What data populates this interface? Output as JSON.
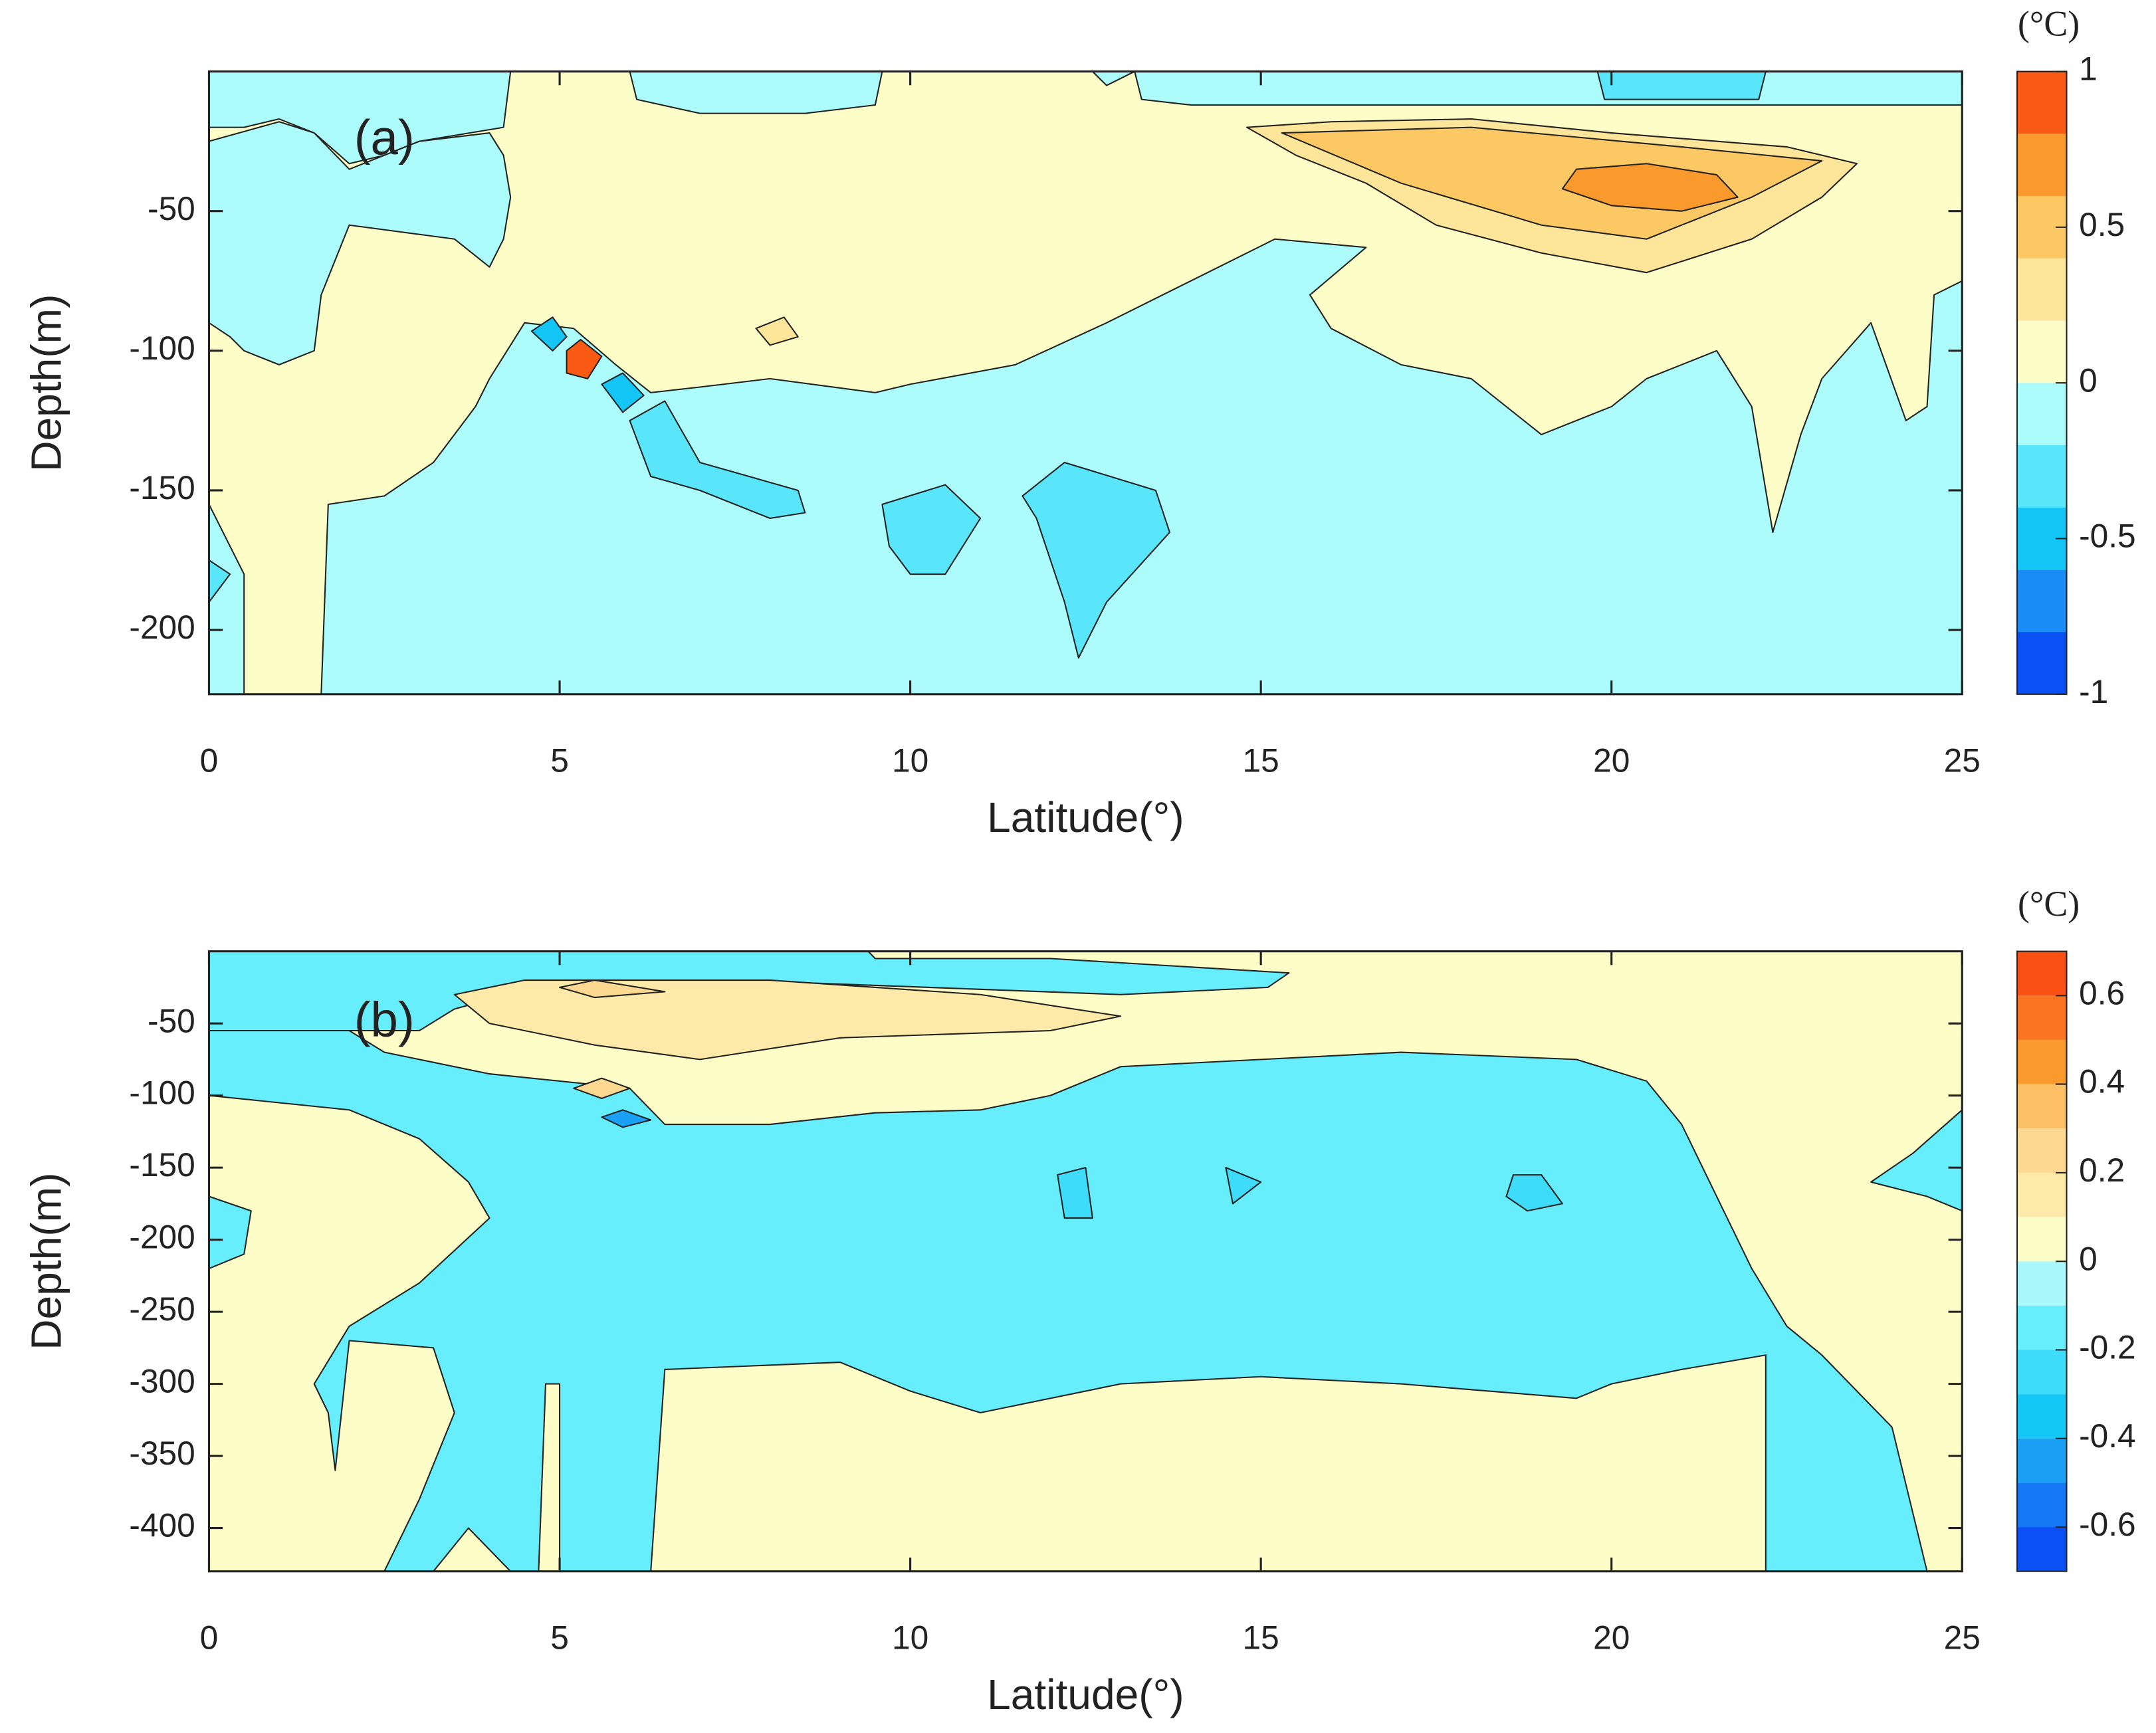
{
  "chart_data": [
    {
      "type": "contour",
      "panel_label": "(a)",
      "xlabel": "Latitude(°)",
      "ylabel": "Depth(m)",
      "xlim": [
        0,
        25
      ],
      "ylim": [
        -223,
        0
      ],
      "xticks": [
        0,
        5,
        10,
        15,
        20,
        25
      ],
      "yticks": [
        -50,
        -100,
        -150,
        -200
      ],
      "colorbar": {
        "unit": "(°C)",
        "levels": [
          -1,
          -0.8,
          -0.6,
          -0.4,
          -0.2,
          0,
          0.2,
          0.4,
          0.6,
          0.8,
          1
        ],
        "colors": [
          "#0a50f5",
          "#1a8cf5",
          "#14c6f5",
          "#5ae6fa",
          "#adfcfc",
          "#fdfdc8",
          "#fde59a",
          "#fcc864",
          "#fb9a2c",
          "#fb5a14"
        ],
        "ticks": [
          -1,
          -0.5,
          0,
          0.5,
          1
        ]
      }
    },
    {
      "type": "contour",
      "panel_label": "(b)",
      "xlabel": "Latitude(°)",
      "ylabel": "Depth(m)",
      "xlim": [
        0,
        25
      ],
      "ylim": [
        -430,
        0
      ],
      "xticks": [
        0,
        5,
        10,
        15,
        20,
        25
      ],
      "yticks": [
        -50,
        -100,
        -150,
        -200,
        -250,
        -300,
        -350,
        -400
      ],
      "colorbar": {
        "unit": "(°C)",
        "levels": [
          -0.7,
          -0.6,
          -0.5,
          -0.4,
          -0.3,
          -0.2,
          -0.1,
          0,
          0.1,
          0.2,
          0.3,
          0.4,
          0.5,
          0.6,
          0.7
        ],
        "colors": [
          "#0a50f5",
          "#1478f5",
          "#1aa0f5",
          "#14c8f5",
          "#3cdcfa",
          "#66eefc",
          "#aaf8fc",
          "#fdfdc8",
          "#fde9a8",
          "#fdd890",
          "#fcc064",
          "#fb9a2c",
          "#fb7420",
          "#fb5014"
        ],
        "ticks": [
          -0.6,
          -0.4,
          -0.2,
          0,
          0.2,
          0.4,
          0.6
        ]
      }
    }
  ]
}
